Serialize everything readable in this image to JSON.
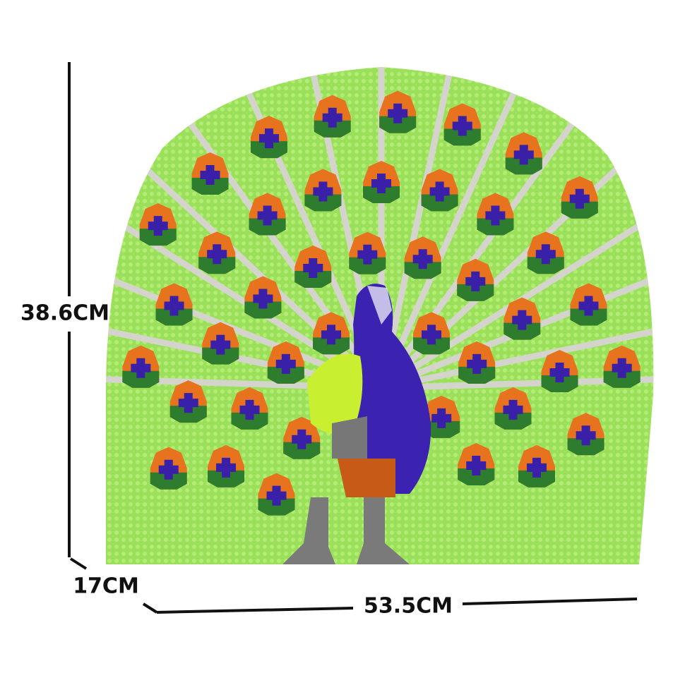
{
  "dimensions": {
    "height": "38.6CM",
    "depth": "17CM",
    "width": "53.5CM"
  }
}
